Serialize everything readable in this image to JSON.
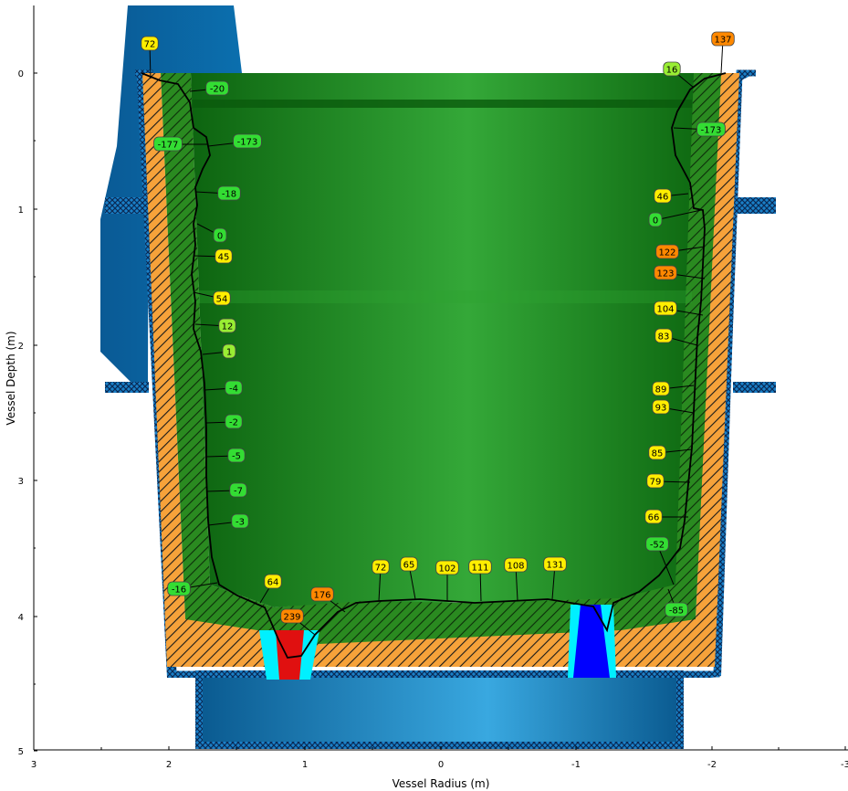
{
  "axes": {
    "x_title": "Vessel Radius (m)",
    "y_title": "Vessel Depth (m)",
    "x_ticks": [
      "3",
      "2",
      "1",
      "0",
      "-1",
      "-2",
      "-3"
    ],
    "y_ticks": [
      "0",
      "1",
      "2",
      "3",
      "4",
      "5"
    ]
  },
  "colors": {
    "liquid_green": "#1f9a2a",
    "refractory_green": "#2a8a20",
    "insulation_orange": "#f6a23a",
    "steel_shell": "#1a80c8",
    "fixture_blue": "#0a6aa8",
    "cyan": "#00f0ff",
    "red_plug": "#e01010",
    "blue_plug": "#0000ff",
    "label_green": "#33dd33",
    "label_lime": "#99ee33",
    "label_yellow": "#ffee00",
    "label_orange": "#ff8800"
  },
  "labels": [
    {
      "text": "72",
      "fill": "#ffee00"
    },
    {
      "text": "137",
      "fill": "#ff8800"
    },
    {
      "text": "16",
      "fill": "#99ee33"
    },
    {
      "text": "-20",
      "fill": "#33dd33"
    },
    {
      "text": "-177",
      "fill": "#33dd33"
    },
    {
      "text": "-173",
      "fill": "#33dd33"
    },
    {
      "text": "-173",
      "fill": "#33dd33"
    },
    {
      "text": "-18",
      "fill": "#33dd33"
    },
    {
      "text": "46",
      "fill": "#ffee00"
    },
    {
      "text": "0",
      "fill": "#33dd33"
    },
    {
      "text": "0",
      "fill": "#33dd33"
    },
    {
      "text": "45",
      "fill": "#ffee00"
    },
    {
      "text": "122",
      "fill": "#ff8800"
    },
    {
      "text": "123",
      "fill": "#ff8800"
    },
    {
      "text": "54",
      "fill": "#ffee00"
    },
    {
      "text": "104",
      "fill": "#ffee00"
    },
    {
      "text": "12",
      "fill": "#99ee33"
    },
    {
      "text": "83",
      "fill": "#ffee00"
    },
    {
      "text": "1",
      "fill": "#99ee33"
    },
    {
      "text": "-4",
      "fill": "#33dd33"
    },
    {
      "text": "89",
      "fill": "#ffee00"
    },
    {
      "text": "93",
      "fill": "#ffee00"
    },
    {
      "text": "-2",
      "fill": "#33dd33"
    },
    {
      "text": "-5",
      "fill": "#33dd33"
    },
    {
      "text": "85",
      "fill": "#ffee00"
    },
    {
      "text": "-7",
      "fill": "#33dd33"
    },
    {
      "text": "79",
      "fill": "#ffee00"
    },
    {
      "text": "-3",
      "fill": "#33dd33"
    },
    {
      "text": "66",
      "fill": "#ffee00"
    },
    {
      "text": "-52",
      "fill": "#33dd33"
    },
    {
      "text": "72",
      "fill": "#ffee00"
    },
    {
      "text": "65",
      "fill": "#ffee00"
    },
    {
      "text": "102",
      "fill": "#ffee00"
    },
    {
      "text": "111",
      "fill": "#ffee00"
    },
    {
      "text": "108",
      "fill": "#ffee00"
    },
    {
      "text": "131",
      "fill": "#ffee00"
    },
    {
      "text": "-16",
      "fill": "#33dd33"
    },
    {
      "text": "64",
      "fill": "#ffee00"
    },
    {
      "text": "176",
      "fill": "#ff8800"
    },
    {
      "text": "239",
      "fill": "#ff8800"
    },
    {
      "text": "-85",
      "fill": "#33dd33"
    }
  ]
}
